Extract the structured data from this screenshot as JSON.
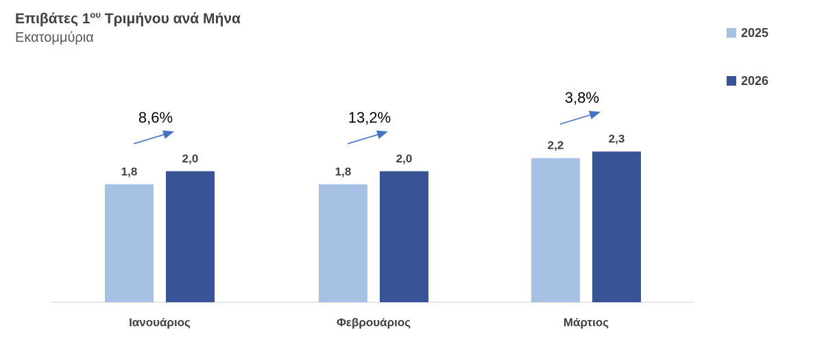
{
  "title": {
    "main": "Επιβάτες 1",
    "sup": "ου",
    "rest": " Τριμήνου ανά Μήνα",
    "subtitle": "Εκατομμύρια"
  },
  "colors": {
    "series_2025": "#a6c1e4",
    "series_2026": "#385396",
    "arrow": "#4472c4",
    "axis": "#d9d9d9",
    "text": "#404040"
  },
  "chart_data": {
    "type": "bar",
    "title": "Επιβάτες 1ου Τριμήνου ανά Μήνα",
    "subtitle": "Εκατομμύρια",
    "categories": [
      "Ιανουάριος",
      "Φεβρουάριος",
      "Μάρτιος"
    ],
    "series": [
      {
        "name": "2025",
        "values": [
          1.8,
          1.8,
          2.2
        ],
        "labels": [
          "1,8",
          "1,8",
          "2,2"
        ]
      },
      {
        "name": "2026",
        "values": [
          2.0,
          2.0,
          2.3
        ],
        "labels": [
          "2,0",
          "2,0",
          "2,3"
        ]
      }
    ],
    "growth_labels": [
      "8,6%",
      "13,2%",
      "3,8%"
    ],
    "legend_position": "right",
    "grid": false
  }
}
